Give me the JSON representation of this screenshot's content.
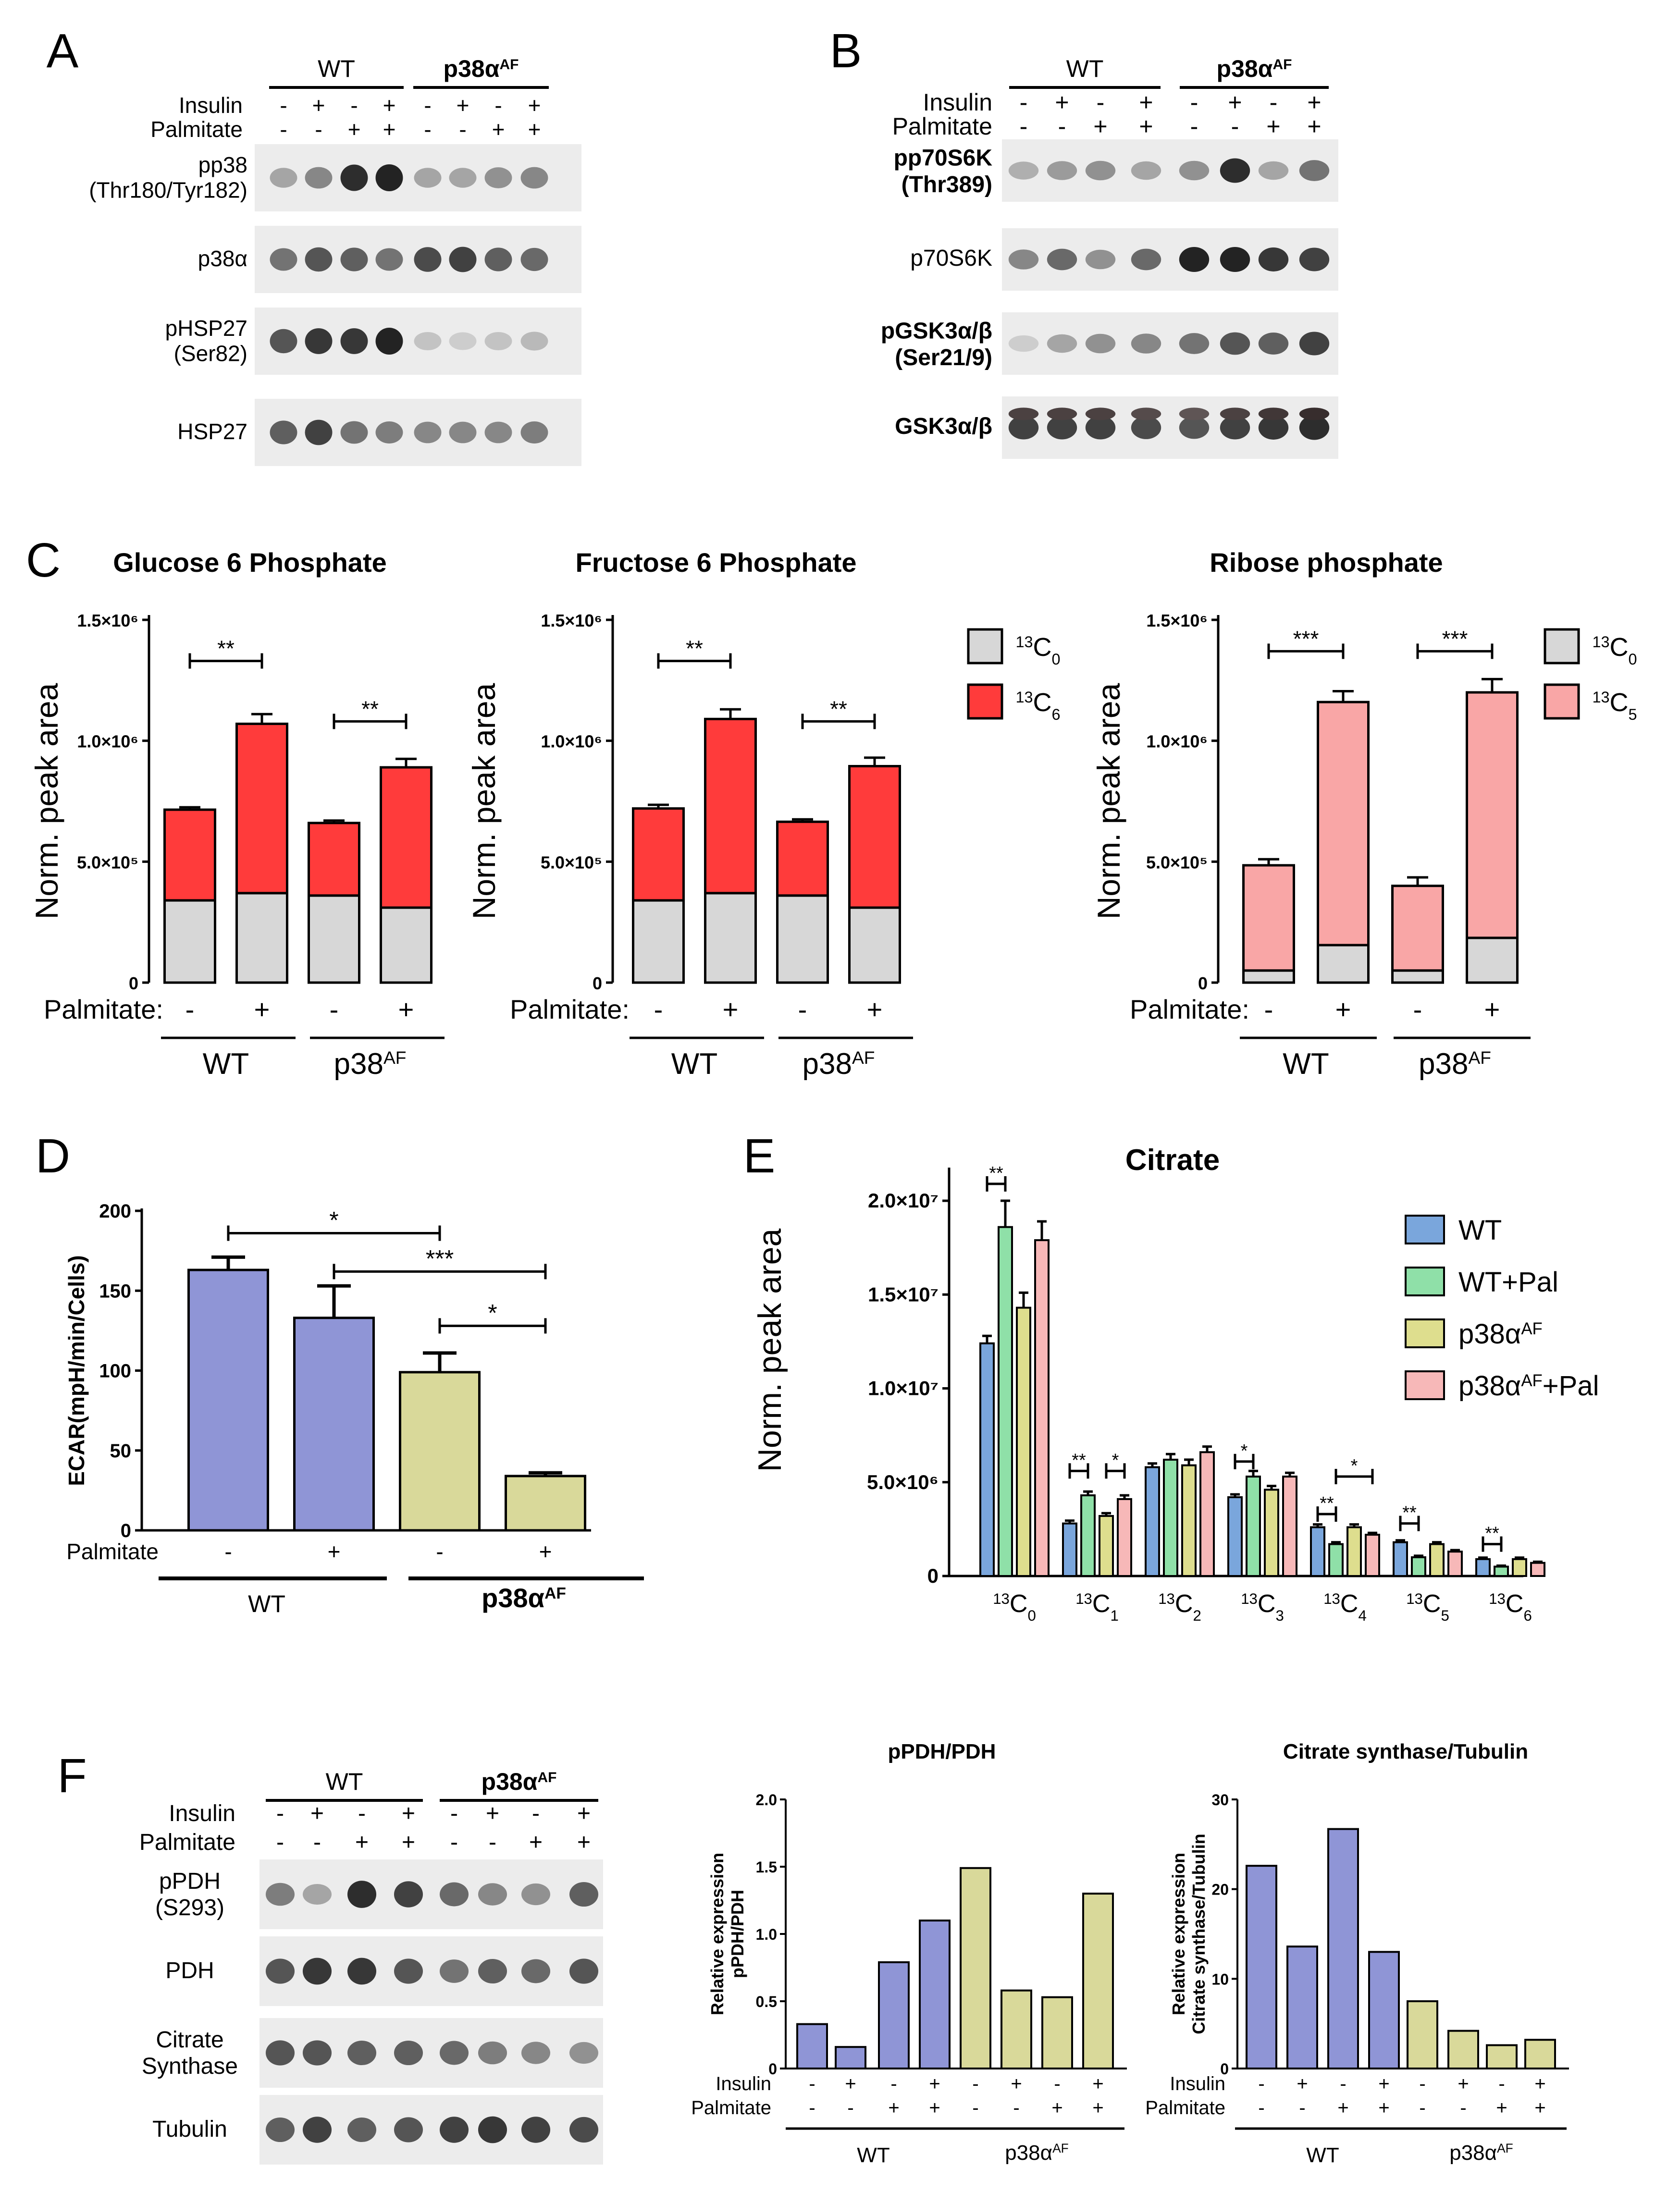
{
  "colors": {
    "wt_blue": "#8f95d6",
    "p38_yellow": "#d9d99a",
    "c13_red": "#ff3b3b",
    "c13_pink": "#f9a6a6",
    "c12_gray": "#d7d7d7",
    "citrate_wt": "#7aa6dc",
    "citrate_wtpal": "#8fe0a8",
    "citrate_p38": "#dede8e",
    "citrate_p38pal": "#f7b8b8"
  },
  "panel_a": {
    "letter": "A",
    "group_wt": "WT",
    "group_p38": "p38α",
    "group_p38_sup": "AF",
    "row_insulin": "Insulin",
    "row_palmitate": "Palmitate",
    "insulin_signs": [
      "-",
      "+",
      "-",
      "+",
      "-",
      "+",
      "-",
      "+"
    ],
    "palmitate_signs": [
      "-",
      "-",
      "+",
      "+",
      "-",
      "-",
      "+",
      "+"
    ],
    "blots": [
      {
        "label1": "pp38",
        "label2": "(Thr180/Tyr182)",
        "intensity": [
          0.35,
          0.5,
          0.95,
          1.0,
          0.35,
          0.35,
          0.45,
          0.5
        ]
      },
      {
        "label1": "p38α",
        "label2": "",
        "intensity": [
          0.6,
          0.75,
          0.7,
          0.6,
          0.8,
          0.85,
          0.7,
          0.65
        ]
      },
      {
        "label1": "pHSP27",
        "label2": "(Ser82)",
        "intensity": [
          0.75,
          0.9,
          0.9,
          1.0,
          0.2,
          0.15,
          0.2,
          0.25
        ]
      },
      {
        "label1": "HSP27",
        "label2": "",
        "intensity": [
          0.7,
          0.85,
          0.6,
          0.55,
          0.5,
          0.5,
          0.5,
          0.55
        ]
      }
    ]
  },
  "panel_b": {
    "letter": "B",
    "group_wt": "WT",
    "group_p38": "p38α",
    "group_p38_sup": "AF",
    "row_insulin": "Insulin",
    "row_palmitate": "Palmitate",
    "insulin_signs": [
      "-",
      "+",
      "-",
      "+",
      "-",
      "+",
      "-",
      "+"
    ],
    "palmitate_signs": [
      "-",
      "-",
      "+",
      "+",
      "-",
      "-",
      "+",
      "+"
    ],
    "blots": [
      {
        "label1": "pp70S6K",
        "label2": "(Thr389)",
        "intensity": [
          0.3,
          0.4,
          0.45,
          0.35,
          0.45,
          0.95,
          0.35,
          0.6
        ]
      },
      {
        "label1": "p70S6K",
        "label2": "",
        "intensity": [
          0.5,
          0.65,
          0.45,
          0.65,
          1.0,
          1.0,
          0.9,
          0.85
        ]
      },
      {
        "label1": "pGSK3α/β",
        "label2": "(Ser21/9)",
        "intensity": [
          0.15,
          0.35,
          0.45,
          0.5,
          0.6,
          0.75,
          0.7,
          0.85
        ]
      },
      {
        "label1": "GSK3α/β",
        "label2": "",
        "intensity": [
          0.85,
          0.85,
          0.85,
          0.8,
          0.75,
          0.85,
          0.9,
          0.95
        ]
      }
    ]
  },
  "panel_c": {
    "letter": "C",
    "ylabel": "Norm. peak area",
    "palmitate_label": "Palmitate:",
    "palmitate_signs": [
      "-",
      "+",
      "-",
      "+"
    ],
    "group_wt": "WT",
    "group_p38": "p38",
    "group_p38_sup": "AF"
  },
  "panel_d": {
    "letter": "D",
    "palmitate_label": "Palmitate",
    "palmitate_signs": [
      "-",
      "+",
      "-",
      "+"
    ],
    "group_wt": "WT",
    "group_p38": "p38α",
    "group_p38_sup": "AF"
  },
  "panel_e": {
    "letter": "E"
  },
  "panel_f": {
    "letter": "F",
    "group_wt": "WT",
    "group_p38": "p38α",
    "group_p38_sup": "AF",
    "row_insulin": "Insulin",
    "row_palmitate": "Palmitate",
    "insulin_signs": [
      "-",
      "+",
      "-",
      "+",
      "-",
      "+",
      "-",
      "+"
    ],
    "palmitate_signs": [
      "-",
      "-",
      "+",
      "+",
      "-",
      "-",
      "+",
      "+"
    ],
    "blots": [
      {
        "label1": "pPDH",
        "label2": "(S293)",
        "intensity": [
          0.55,
          0.35,
          0.95,
          0.85,
          0.65,
          0.5,
          0.45,
          0.7
        ]
      },
      {
        "label1": "PDH",
        "label2": "",
        "intensity": [
          0.75,
          0.9,
          0.9,
          0.75,
          0.6,
          0.7,
          0.65,
          0.75
        ]
      },
      {
        "label1": "Citrate",
        "label2": "Synthase",
        "intensity": [
          0.75,
          0.75,
          0.7,
          0.7,
          0.65,
          0.55,
          0.5,
          0.45
        ]
      },
      {
        "label1": "Tubulin",
        "label2": "",
        "intensity": [
          0.7,
          0.85,
          0.7,
          0.75,
          0.85,
          0.9,
          0.85,
          0.8
        ]
      }
    ]
  },
  "chart_data": [
    {
      "id": "c1",
      "type": "stacked-bar",
      "title": "Glucose 6 Phosphate",
      "ylabel": "Norm. peak area",
      "ylim": [
        0,
        1500000
      ],
      "yticks": [
        0,
        500000,
        1000000,
        1500000
      ],
      "ytick_labels": [
        "0",
        "5.0×10⁵",
        "1.0×10⁶",
        "1.5×10⁶"
      ],
      "categories": [
        "WT -",
        "WT +",
        "p38AF -",
        "p38AF +"
      ],
      "series": [
        {
          "name": "13C0",
          "label": "C",
          "sub": "0",
          "values": [
            340000,
            370000,
            360000,
            310000
          ],
          "errors": [
            12000,
            20000,
            12000,
            12000
          ]
        },
        {
          "name": "13C6",
          "label": "C",
          "sub": "6",
          "values": [
            375000,
            700000,
            300000,
            580000
          ],
          "errors": [
            10000,
            40000,
            10000,
            35000
          ]
        }
      ],
      "significance": [
        {
          "from": 0,
          "to": 1,
          "label": "**",
          "y": 1330000
        },
        {
          "from": 2,
          "to": 3,
          "label": "**",
          "y": 1080000
        }
      ]
    },
    {
      "id": "c2",
      "type": "stacked-bar",
      "title": "Fructose 6 Phosphate",
      "ylabel": "Norm. peak area",
      "ylim": [
        0,
        1500000
      ],
      "yticks": [
        0,
        500000,
        1000000,
        1500000
      ],
      "ytick_labels": [
        "0",
        "5.0×10⁵",
        "1.0×10⁶",
        "1.5×10⁶"
      ],
      "categories": [
        "WT -",
        "WT +",
        "p38AF -",
        "p38AF +"
      ],
      "series": [
        {
          "name": "13C0",
          "label": "C",
          "sub": "0",
          "values": [
            340000,
            370000,
            360000,
            310000
          ],
          "errors": [
            12000,
            25000,
            12000,
            12000
          ]
        },
        {
          "name": "13C6",
          "label": "C",
          "sub": "6",
          "values": [
            380000,
            720000,
            305000,
            585000
          ],
          "errors": [
            15000,
            40000,
            10000,
            35000
          ]
        }
      ],
      "significance": [
        {
          "from": 0,
          "to": 1,
          "label": "**",
          "y": 1330000
        },
        {
          "from": 2,
          "to": 3,
          "label": "**",
          "y": 1080000
        }
      ]
    },
    {
      "id": "c3",
      "type": "stacked-bar",
      "title": "Ribose phosphate",
      "ylabel": "Norm. peak area",
      "ylim": [
        0,
        1500000
      ],
      "yticks": [
        0,
        500000,
        1000000,
        1500000
      ],
      "ytick_labels": [
        "0",
        "5.0×10⁵",
        "1.0×10⁶",
        "1.5×10⁶"
      ],
      "categories": [
        "WT -",
        "WT +",
        "p38AF -",
        "p38AF +"
      ],
      "series": [
        {
          "name": "13C0",
          "label": "C",
          "sub": "0",
          "values": [
            50000,
            155000,
            50000,
            185000
          ],
          "errors": [
            10000,
            15000,
            10000,
            12000
          ]
        },
        {
          "name": "13C5",
          "label": "C",
          "sub": "5",
          "values": [
            435000,
            1005000,
            350000,
            1015000
          ],
          "errors": [
            25000,
            45000,
            35000,
            55000
          ]
        }
      ],
      "significance": [
        {
          "from": 0,
          "to": 1,
          "label": "***",
          "y": 1370000
        },
        {
          "from": 2,
          "to": 3,
          "label": "***",
          "y": 1370000
        }
      ]
    },
    {
      "id": "d",
      "type": "bar",
      "title": "",
      "ylabel": "ECAR(mpH/min/Cells)",
      "ylim": [
        0,
        200
      ],
      "yticks": [
        0,
        50,
        100,
        150,
        200
      ],
      "ytick_labels": [
        "0",
        "50",
        "100",
        "150",
        "200"
      ],
      "categories": [
        "WT -",
        "WT +",
        "p38αAF -",
        "p38αAF +"
      ],
      "values": [
        163,
        133,
        99,
        34
      ],
      "errors": [
        8,
        20,
        12,
        2
      ],
      "significance": [
        {
          "from": 0,
          "to": 2,
          "label": "*",
          "y": 186
        },
        {
          "from": 1,
          "to": 3,
          "label": "***",
          "y": 162
        },
        {
          "from": 2,
          "to": 3,
          "label": "*",
          "y": 128
        }
      ]
    },
    {
      "id": "e",
      "type": "grouped-bar",
      "title": "Citrate",
      "ylabel": "Norm. peak area",
      "ylim": [
        0,
        21000000
      ],
      "yticks": [
        0,
        5000000,
        10000000,
        15000000,
        20000000
      ],
      "ytick_labels": [
        "0",
        "5.0×10⁶",
        "1.0×10⁷",
        "1.5×10⁷",
        "2.0×10⁷"
      ],
      "categories": [
        {
          "label": "C",
          "sub": "0"
        },
        {
          "label": "C",
          "sub": "1"
        },
        {
          "label": "C",
          "sub": "2"
        },
        {
          "label": "C",
          "sub": "3"
        },
        {
          "label": "C",
          "sub": "4"
        },
        {
          "label": "C",
          "sub": "5"
        },
        {
          "label": "C",
          "sub": "6"
        }
      ],
      "series": [
        {
          "name": "WT",
          "legend": "WT",
          "legend_sup": "",
          "legend_tail": "",
          "values": [
            12400000,
            2800000,
            5800000,
            4200000,
            2600000,
            1800000,
            900000
          ],
          "errors": [
            400000,
            150000,
            200000,
            150000,
            150000,
            100000,
            80000
          ]
        },
        {
          "name": "WT+Pal",
          "legend": "WT+Pal",
          "legend_sup": "",
          "legend_tail": "",
          "values": [
            18600000,
            4300000,
            6200000,
            5300000,
            1700000,
            1000000,
            500000
          ],
          "errors": [
            1400000,
            200000,
            300000,
            300000,
            100000,
            80000,
            50000
          ]
        },
        {
          "name": "p38αAF",
          "legend": "p38α",
          "legend_sup": "AF",
          "legend_tail": "",
          "values": [
            14300000,
            3200000,
            5900000,
            4600000,
            2600000,
            1700000,
            900000
          ],
          "errors": [
            800000,
            150000,
            300000,
            200000,
            150000,
            100000,
            80000
          ]
        },
        {
          "name": "p38αAF+Pal",
          "legend": "p38α",
          "legend_sup": "AF",
          "legend_tail": "+Pal",
          "values": [
            17900000,
            4100000,
            6600000,
            5300000,
            2200000,
            1300000,
            700000
          ],
          "errors": [
            1000000,
            200000,
            300000,
            200000,
            100000,
            80000,
            60000
          ]
        }
      ],
      "significance": [
        {
          "cat": 0,
          "from": 0,
          "to": 1,
          "label": "**",
          "y": 20900000
        },
        {
          "cat": 1,
          "from": 0,
          "to": 1,
          "label": "**",
          "y": 5600000
        },
        {
          "cat": 1,
          "from": 2,
          "to": 3,
          "label": "*",
          "y": 5600000
        },
        {
          "cat": 3,
          "from": 0,
          "to": 1,
          "label": "*",
          "y": 6100000
        },
        {
          "cat": 4,
          "from": 0,
          "to": 1,
          "label": "**",
          "y": 3300000
        },
        {
          "cat": 4,
          "from": 1,
          "to": 3,
          "label": "*",
          "y": 5300000
        },
        {
          "cat": 5,
          "from": 0,
          "to": 1,
          "label": "**",
          "y": 2800000
        },
        {
          "cat": 6,
          "from": 0,
          "to": 1,
          "label": "**",
          "y": 1700000
        }
      ]
    },
    {
      "id": "f1",
      "type": "bar",
      "title": "pPDH/PDH",
      "ylabel": "Relative expression",
      "ylabel2": "pPDH/PDH",
      "ylim": [
        0,
        2.0
      ],
      "yticks": [
        0,
        0.5,
        1.0,
        1.5,
        2.0
      ],
      "ytick_labels": [
        "0",
        "0.5",
        "1.0",
        "1.5",
        "2.0"
      ],
      "categories": [
        "WT -/-",
        "WT +/-",
        "WT -/+",
        "WT +/+",
        "p38αAF -/-",
        "p38αAF +/-",
        "p38αAF -/+",
        "p38αAF +/+"
      ],
      "values": [
        0.33,
        0.16,
        0.79,
        1.1,
        1.49,
        0.58,
        0.53,
        1.3
      ],
      "row_insulin": "Insulin",
      "row_palmitate": "Palmitate",
      "insulin_signs": [
        "-",
        "+",
        "-",
        "+",
        "-",
        "+",
        "-",
        "+"
      ],
      "palmitate_signs": [
        "-",
        "-",
        "+",
        "+",
        "-",
        "-",
        "+",
        "+"
      ],
      "group_wt": "WT",
      "group_p38": "p38α",
      "group_p38_sup": "AF"
    },
    {
      "id": "f2",
      "type": "bar",
      "title": "Citrate synthase/Tubulin",
      "ylabel": "Relative expression",
      "ylabel2": "Citrate synthase/Tubulin",
      "ylim": [
        0,
        30
      ],
      "yticks": [
        0,
        10,
        20,
        30
      ],
      "ytick_labels": [
        "0",
        "10",
        "20",
        "30"
      ],
      "categories": [
        "WT -/-",
        "WT +/-",
        "WT -/+",
        "WT +/+",
        "p38αAF -/-",
        "p38αAF +/-",
        "p38αAF -/+",
        "p38αAF +/+"
      ],
      "values": [
        22.6,
        13.6,
        26.7,
        13.0,
        7.5,
        4.2,
        2.6,
        3.2
      ],
      "row_insulin": "Insulin",
      "row_palmitate": "Palmitate",
      "insulin_signs": [
        "-",
        "+",
        "-",
        "+",
        "-",
        "+",
        "-",
        "+"
      ],
      "palmitate_signs": [
        "-",
        "-",
        "+",
        "+",
        "-",
        "-",
        "+",
        "+"
      ],
      "group_wt": "WT",
      "group_p38": "p38α",
      "group_p38_sup": "AF"
    }
  ]
}
